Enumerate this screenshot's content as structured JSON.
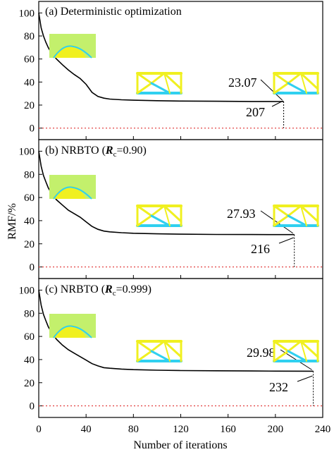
{
  "figure": {
    "ylabel": "RMF/%",
    "xlabel": "Number of iterations",
    "x_ticks": [
      "0",
      "40",
      "80",
      "120",
      "160",
      "200",
      "240"
    ],
    "colors": {
      "curve": "#000000",
      "reference": "#e03030",
      "structure_fill": "#f0f020",
      "structure_bar": "#30d0f0"
    }
  },
  "chart_data": [
    {
      "type": "line",
      "title_prefix": "(a) Deterministic optimization",
      "title_italic": "",
      "title_sub": "",
      "title_suffix": "",
      "xlim": [
        0,
        240
      ],
      "ylim": [
        -10,
        110
      ],
      "y_ticks": [
        "0",
        "20",
        "40",
        "60",
        "80",
        "100"
      ],
      "x": [
        0,
        2,
        4,
        6,
        8,
        10,
        15,
        20,
        25,
        30,
        35,
        40,
        45,
        50,
        55,
        60,
        70,
        80,
        100,
        120,
        150,
        180,
        207
      ],
      "y": [
        100,
        87,
        80,
        74.5,
        70,
        66.5,
        60,
        55,
        50.5,
        46.5,
        43,
        38,
        31,
        27.5,
        26,
        25.2,
        24.6,
        24.2,
        23.8,
        23.5,
        23.3,
        23.15,
        23.07
      ],
      "final_value": "23.07",
      "final_iteration": "207",
      "final_x": 207,
      "final_y": 23.07,
      "reference_y": 0
    },
    {
      "type": "line",
      "title_prefix": "(b) NRBTO (",
      "title_italic": "R",
      "title_sub": "c",
      "title_suffix": "=0.90)",
      "xlim": [
        0,
        240
      ],
      "ylim": [
        -10,
        110
      ],
      "y_ticks": [
        "0",
        "20",
        "40",
        "60",
        "80",
        "100"
      ],
      "x": [
        0,
        2,
        4,
        6,
        8,
        10,
        15,
        20,
        25,
        30,
        35,
        40,
        45,
        50,
        55,
        60,
        70,
        80,
        100,
        120,
        150,
        180,
        216
      ],
      "y": [
        100,
        87,
        79,
        73.5,
        68.5,
        65,
        58,
        53.5,
        49,
        46,
        43,
        39,
        35,
        32.5,
        31,
        30.3,
        29.6,
        29.1,
        28.6,
        28.3,
        28.1,
        27.99,
        27.93
      ],
      "final_value": "27.93",
      "final_iteration": "216",
      "final_x": 216,
      "final_y": 27.93,
      "reference_y": 0
    },
    {
      "type": "line",
      "title_prefix": "(c) NRBTO (",
      "title_italic": "R",
      "title_sub": "c",
      "title_suffix": "=0.999)",
      "xlim": [
        0,
        240
      ],
      "ylim": [
        -10,
        110
      ],
      "y_ticks": [
        "0",
        "20",
        "40",
        "60",
        "80",
        "100"
      ],
      "x": [
        0,
        2,
        4,
        6,
        8,
        10,
        15,
        20,
        25,
        30,
        35,
        40,
        45,
        50,
        55,
        60,
        70,
        80,
        100,
        120,
        150,
        180,
        200,
        232
      ],
      "y": [
        100,
        87,
        79,
        73.5,
        68.5,
        65,
        57.5,
        52.5,
        48.5,
        45.5,
        42.5,
        39.5,
        36.5,
        34.5,
        33,
        32.5,
        31.8,
        31.3,
        30.8,
        30.5,
        30.3,
        30.15,
        30.05,
        29.98
      ],
      "final_value": "29.98",
      "final_iteration": "232",
      "final_x": 232,
      "final_y": 29.98,
      "reference_y": 0
    }
  ]
}
